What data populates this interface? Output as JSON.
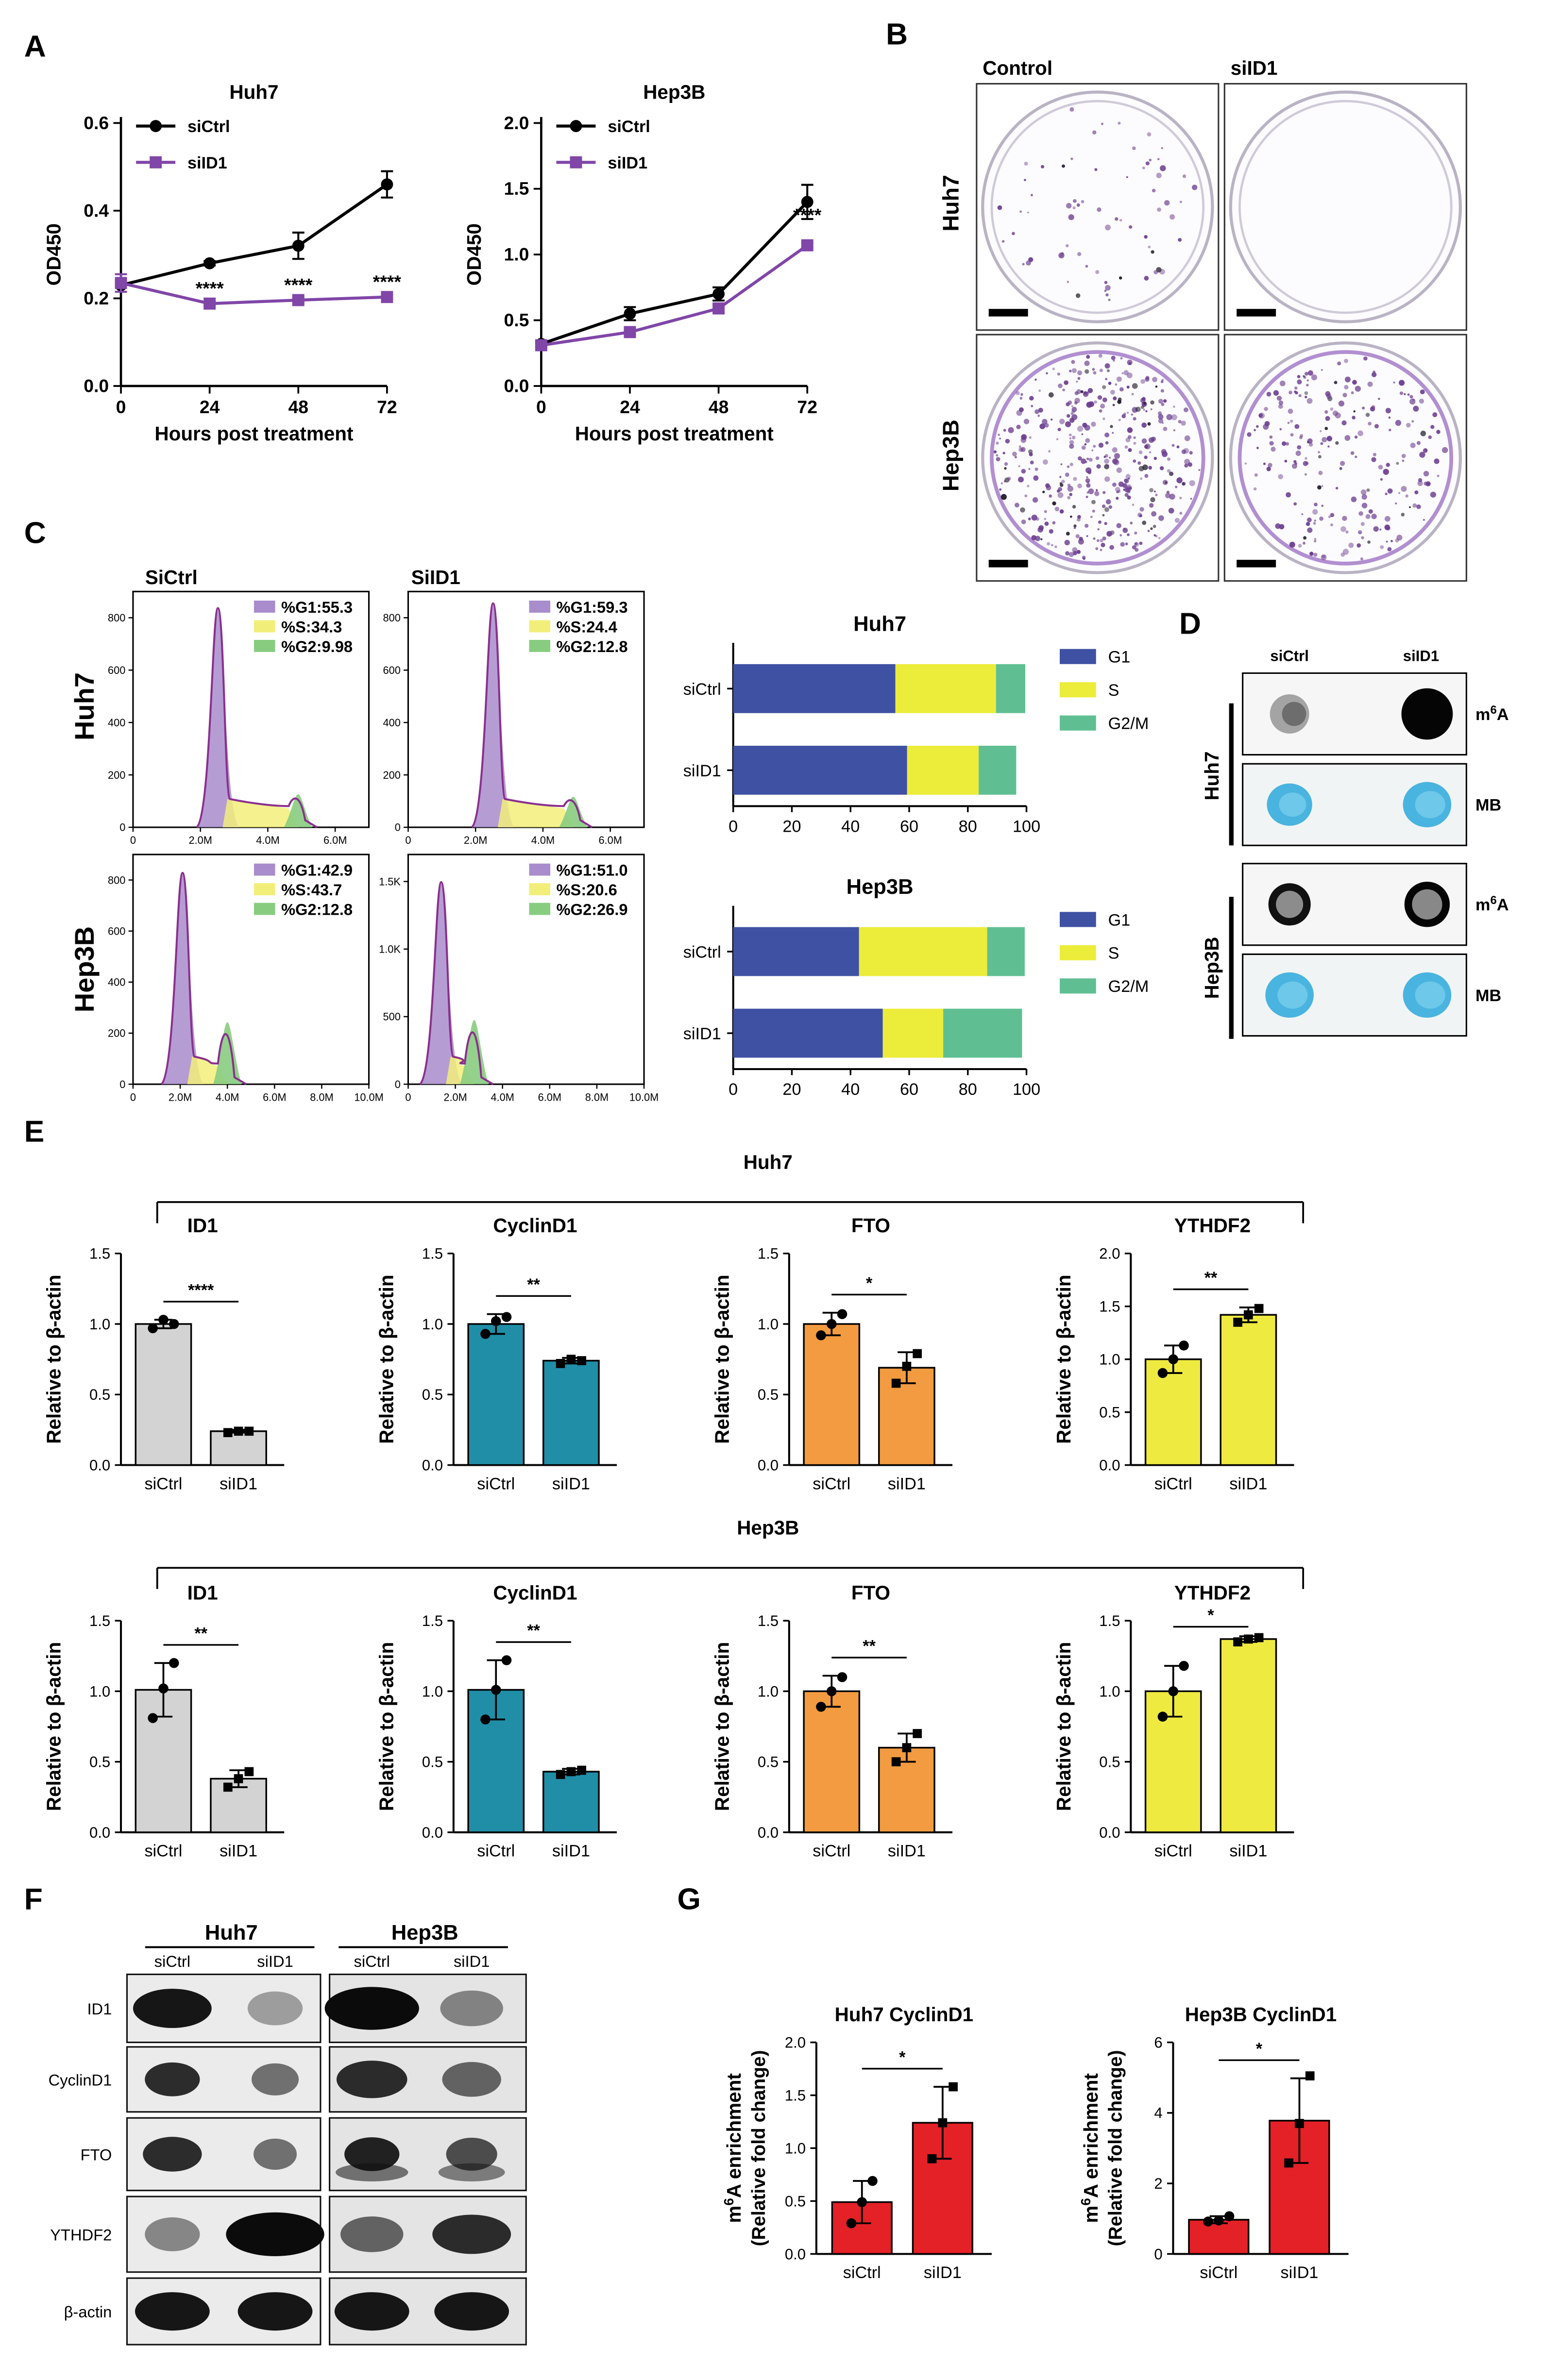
{
  "panel_labels": {
    "A": "A",
    "B": "B",
    "C": "C",
    "D": "D",
    "E": "E",
    "F": "F",
    "G": "G"
  },
  "colors": {
    "siCtrl": "#000000",
    "siID1": "#8046a8",
    "sig": "#8b52b0",
    "G1": "#3f51a3",
    "S": "#ecec3a",
    "G2M": "#5fbf93",
    "hist_G1": "#a88ccc",
    "hist_S": "#f2ee7a",
    "hist_G2": "#88cc80",
    "hist_fit": "#8b2f8e",
    "gray": "#d3d3d3",
    "teal": "#208ea7",
    "orange": "#f39b40",
    "yellow": "#eeea40",
    "red": "#e32126",
    "mb_blue": "#3fb0dd",
    "colony_purple": "#6a3c8e"
  },
  "chart_data": [
    {
      "id": "A-huh7",
      "type": "line",
      "title": "Huh7",
      "xlabel": "Hours post treatment",
      "ylabel": "OD450",
      "x": [
        0,
        24,
        48,
        72
      ],
      "xlim": [
        0,
        72
      ],
      "ylim": [
        0,
        0.6
      ],
      "x_ticks": [
        "0",
        "24",
        "48",
        "72"
      ],
      "y_ticks": [
        "0.0",
        "0.2",
        "0.4",
        "0.6"
      ],
      "series": [
        {
          "name": "siCtrl",
          "values": [
            0.23,
            0.28,
            0.32,
            0.46
          ],
          "errors": [
            0.0,
            0.005,
            0.03,
            0.03
          ]
        },
        {
          "name": "siID1",
          "values": [
            0.235,
            0.188,
            0.196,
            0.203
          ],
          "errors": [
            0.02,
            0.005,
            0.005,
            0.005
          ]
        }
      ],
      "significance": [
        "",
        "****",
        "****",
        "****"
      ]
    },
    {
      "id": "A-hep3b",
      "type": "line",
      "title": "Hep3B",
      "xlabel": "Hours post treatment",
      "ylabel": "OD450",
      "x": [
        0,
        24,
        48,
        72
      ],
      "xlim": [
        0,
        72
      ],
      "ylim": [
        0,
        2.0
      ],
      "x_ticks": [
        "0",
        "24",
        "48",
        "72"
      ],
      "y_ticks": [
        "0.0",
        "0.5",
        "1.0",
        "1.5",
        "2.0"
      ],
      "series": [
        {
          "name": "siCtrl",
          "values": [
            0.32,
            0.55,
            0.7,
            1.4
          ],
          "errors": [
            0.02,
            0.05,
            0.05,
            0.13
          ]
        },
        {
          "name": "siID1",
          "values": [
            0.31,
            0.41,
            0.59,
            1.07
          ],
          "errors": [
            0.02,
            0.02,
            0.03,
            0.02
          ]
        }
      ],
      "significance": [
        "",
        "",
        "",
        "****"
      ]
    },
    {
      "id": "C-huh7",
      "type": "bar",
      "orientation": "horizontal-stacked",
      "title": "Huh7",
      "categories": [
        "siCtrl",
        "siID1"
      ],
      "xlim": [
        0,
        100
      ],
      "x_ticks": [
        "0",
        "20",
        "40",
        "60",
        "80",
        "100"
      ],
      "series": [
        {
          "name": "G1",
          "values": [
            55.3,
            59.3
          ]
        },
        {
          "name": "S",
          "values": [
            34.3,
            24.4
          ]
        },
        {
          "name": "G2/M",
          "values": [
            9.98,
            12.8
          ]
        }
      ]
    },
    {
      "id": "C-hep3b",
      "type": "bar",
      "orientation": "horizontal-stacked",
      "title": "Hep3B",
      "categories": [
        "siCtrl",
        "siID1"
      ],
      "xlim": [
        0,
        100
      ],
      "x_ticks": [
        "0",
        "20",
        "40",
        "60",
        "80",
        "100"
      ],
      "series": [
        {
          "name": "G1",
          "values": [
            42.9,
            51.0
          ]
        },
        {
          "name": "S",
          "values": [
            43.7,
            20.6
          ]
        },
        {
          "name": "G2/M",
          "values": [
            12.8,
            26.9
          ]
        }
      ]
    },
    {
      "id": "E-huh7-ID1",
      "type": "bar",
      "title": "ID1",
      "ylabel": "Relative to β-actin",
      "categories": [
        "siCtrl",
        "siID1"
      ],
      "values": [
        1.0,
        0.24
      ],
      "errors": [
        0.03,
        0.01
      ],
      "points": [
        [
          0.97,
          1.0,
          1.03
        ],
        [
          0.23,
          0.24,
          0.24
        ]
      ],
      "ylim": [
        0,
        1.5
      ],
      "y_ticks": [
        "0.0",
        "0.5",
        "1.0",
        "1.5"
      ],
      "sig": "****",
      "color_key": "gray"
    },
    {
      "id": "E-huh7-CyclinD1",
      "type": "bar",
      "title": "CyclinD1",
      "ylabel": "Relative to β-actin",
      "categories": [
        "siCtrl",
        "siID1"
      ],
      "values": [
        1.0,
        0.74
      ],
      "errors": [
        0.07,
        0.02
      ],
      "points": [
        [
          0.93,
          1.05,
          1.02
        ],
        [
          0.72,
          0.74,
          0.75
        ]
      ],
      "ylim": [
        0,
        1.5
      ],
      "y_ticks": [
        "0.0",
        "0.5",
        "1.0",
        "1.5"
      ],
      "sig": "**",
      "color_key": "teal"
    },
    {
      "id": "E-huh7-FTO",
      "type": "bar",
      "title": "FTO",
      "ylabel": "Relative to β-actin",
      "categories": [
        "siCtrl",
        "siID1"
      ],
      "values": [
        1.0,
        0.69
      ],
      "errors": [
        0.08,
        0.11
      ],
      "points": [
        [
          0.92,
          1.07,
          1.0
        ],
        [
          0.58,
          0.79,
          0.7
        ]
      ],
      "ylim": [
        0,
        1.5
      ],
      "y_ticks": [
        "0.0",
        "0.5",
        "1.0",
        "1.5"
      ],
      "sig": "*",
      "color_key": "orange"
    },
    {
      "id": "E-huh7-YTHDF2",
      "type": "bar",
      "title": "YTHDF2",
      "ylabel": "Relative to β-actin",
      "categories": [
        "siCtrl",
        "siID1"
      ],
      "values": [
        1.0,
        1.42
      ],
      "errors": [
        0.13,
        0.07
      ],
      "points": [
        [
          0.87,
          1.13,
          1.0
        ],
        [
          1.35,
          1.48,
          1.42
        ]
      ],
      "ylim": [
        0,
        2.0
      ],
      "y_ticks": [
        "0.0",
        "0.5",
        "1.0",
        "1.5",
        "2.0"
      ],
      "sig": "**",
      "color_key": "yellow"
    },
    {
      "id": "E-hep3b-ID1",
      "type": "bar",
      "title": "ID1",
      "ylabel": "Relative to β-actin",
      "categories": [
        "siCtrl",
        "siID1"
      ],
      "values": [
        1.01,
        0.38
      ],
      "errors": [
        0.19,
        0.06
      ],
      "points": [
        [
          0.81,
          1.2,
          1.02
        ],
        [
          0.32,
          0.43,
          0.38
        ]
      ],
      "ylim": [
        0,
        1.5
      ],
      "y_ticks": [
        "0.0",
        "0.5",
        "1.0",
        "1.5"
      ],
      "sig": "**",
      "color_key": "gray"
    },
    {
      "id": "E-hep3b-CyclinD1",
      "type": "bar",
      "title": "CyclinD1",
      "ylabel": "Relative to β-actin",
      "categories": [
        "siCtrl",
        "siID1"
      ],
      "values": [
        1.01,
        0.43
      ],
      "errors": [
        0.21,
        0.02
      ],
      "points": [
        [
          0.8,
          1.22,
          1.01
        ],
        [
          0.41,
          0.44,
          0.43
        ]
      ],
      "ylim": [
        0,
        1.5
      ],
      "y_ticks": [
        "0.0",
        "0.5",
        "1.0",
        "1.5"
      ],
      "sig": "**",
      "color_key": "teal"
    },
    {
      "id": "E-hep3b-FTO",
      "type": "bar",
      "title": "FTO",
      "ylabel": "Relative to β-actin",
      "categories": [
        "siCtrl",
        "siID1"
      ],
      "values": [
        1.0,
        0.6
      ],
      "errors": [
        0.11,
        0.1
      ],
      "points": [
        [
          0.89,
          1.1,
          1.0
        ],
        [
          0.5,
          0.7,
          0.6
        ]
      ],
      "ylim": [
        0,
        1.5
      ],
      "y_ticks": [
        "0.0",
        "0.5",
        "1.0",
        "1.5"
      ],
      "sig": "**",
      "color_key": "orange"
    },
    {
      "id": "E-hep3b-YTHDF2",
      "type": "bar",
      "title": "YTHDF2",
      "ylabel": "Relative to β-actin",
      "categories": [
        "siCtrl",
        "siID1"
      ],
      "values": [
        1.0,
        1.37
      ],
      "errors": [
        0.18,
        0.02
      ],
      "points": [
        [
          0.82,
          1.18,
          1.0
        ],
        [
          1.35,
          1.38,
          1.37
        ]
      ],
      "ylim": [
        0,
        1.5
      ],
      "y_ticks": [
        "0.0",
        "0.5",
        "1.0",
        "1.5"
      ],
      "sig": "*",
      "color_key": "yellow"
    },
    {
      "id": "G-huh7",
      "type": "bar",
      "title": "Huh7 CyclinD1",
      "ylabel": "m6A enrichment (Relative fold change)",
      "categories": [
        "siCtrl",
        "siID1"
      ],
      "values": [
        0.49,
        1.24
      ],
      "errors": [
        0.2,
        0.34
      ],
      "points": [
        [
          0.29,
          0.69,
          0.49
        ],
        [
          0.9,
          1.58,
          1.24
        ]
      ],
      "ylim": [
        0,
        2.0
      ],
      "y_ticks": [
        "0.0",
        "0.5",
        "1.0",
        "1.5",
        "2.0"
      ],
      "sig": "*",
      "color_key": "red"
    },
    {
      "id": "G-hep3b",
      "type": "bar",
      "title": "Hep3B CyclinD1",
      "ylabel": "m6A enrichment (Relative fold change)",
      "categories": [
        "siCtrl",
        "siID1"
      ],
      "values": [
        0.97,
        3.78
      ],
      "errors": [
        0.1,
        1.2
      ],
      "points": [
        [
          0.92,
          1.07,
          0.95
        ],
        [
          2.58,
          5.05,
          3.7
        ]
      ],
      "ylim": [
        0,
        6
      ],
      "y_ticks": [
        "0",
        "2",
        "4",
        "6"
      ],
      "sig": "*",
      "color_key": "red"
    }
  ],
  "panelA": {
    "legend": [
      "siCtrl",
      "siID1"
    ],
    "sig_label": "****"
  },
  "panelB": {
    "col_labels": [
      "Control",
      "siID1"
    ],
    "row_labels": [
      "Huh7",
      "Hep3B"
    ]
  },
  "panelC": {
    "col_labels": [
      "SiCtrl",
      "SiID1"
    ],
    "row_labels": [
      "Huh7",
      "Hep3B"
    ],
    "histograms": [
      {
        "name": "huh7-sictrl",
        "g1": "%G1:55.3",
        "s": "%S:34.3",
        "g2": "%G2:9.98",
        "y_ticks": [
          "0",
          "200",
          "400",
          "600",
          "800"
        ],
        "x_ticks": [
          "0",
          "2.0M",
          "4.0M",
          "6.0M"
        ]
      },
      {
        "name": "huh7-siid1",
        "g1": "%G1:59.3",
        "s": "%S:24.4",
        "g2": "%G2:12.8",
        "y_ticks": [
          "0",
          "200",
          "400",
          "600",
          "800"
        ],
        "x_ticks": [
          "0",
          "2.0M",
          "4.0M",
          "6.0M"
        ]
      },
      {
        "name": "hep3b-sictrl",
        "g1": "%G1:42.9",
        "s": "%S:43.7",
        "g2": "%G2:12.8",
        "y_ticks": [
          "0",
          "200",
          "400",
          "600",
          "800"
        ],
        "x_ticks": [
          "0",
          "2.0M",
          "4.0M",
          "6.0M",
          "8.0M",
          "10.0M"
        ]
      },
      {
        "name": "hep3b-siid1",
        "g1": "%G1:51.0",
        "s": "%S:20.6",
        "g2": "%G2:26.9",
        "y_ticks": [
          "0",
          "500",
          "1.0K",
          "1.5K"
        ],
        "x_ticks": [
          "0",
          "2.0M",
          "4.0M",
          "6.0M",
          "8.0M",
          "10.0M"
        ]
      }
    ],
    "legend": [
      "G1",
      "S",
      "G2/M"
    ]
  },
  "panelD": {
    "col_labels": [
      "siCtrl",
      "siID1"
    ],
    "row_labels": [
      "Huh7",
      "Hep3B"
    ],
    "blot_labels": [
      "m6A",
      "MB",
      "m6A",
      "MB"
    ]
  },
  "panelE": {
    "groups": [
      "Huh7",
      "Hep3B"
    ]
  },
  "panelF": {
    "cell_lines": [
      "Huh7",
      "Hep3B"
    ],
    "lanes": [
      "siCtrl",
      "siID1",
      "siCtrl",
      "siID1"
    ],
    "proteins": [
      "ID1",
      "CyclinD1",
      "FTO",
      "YTHDF2",
      "β-actin"
    ]
  }
}
